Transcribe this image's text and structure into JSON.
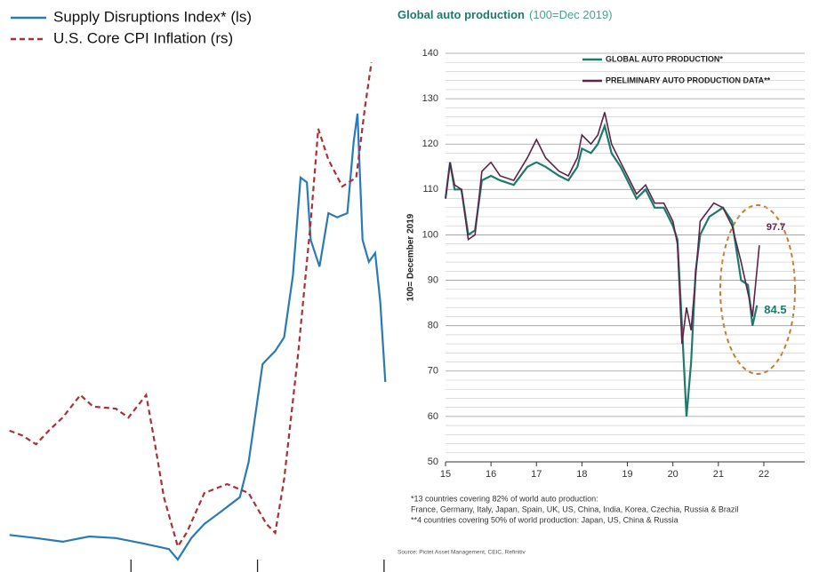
{
  "chart_data": [
    {
      "type": "line",
      "xlim": [
        0,
        3.05
      ],
      "xticks": [
        1,
        2,
        3
      ],
      "ylim": [
        0,
        100
      ],
      "y2lim": [
        0,
        100
      ],
      "series": [
        {
          "name": "Supply Disruptions Index* (ls)",
          "color": "#2a7ab8",
          "line_style": "solid",
          "x": [
            0.04,
            0.25,
            0.46,
            0.67,
            0.88,
            1.09,
            1.3,
            1.37,
            1.48,
            1.58,
            1.72,
            1.86,
            1.93,
            2.04,
            2.14,
            2.21,
            2.28,
            2.34,
            2.39,
            2.42,
            2.49,
            2.56,
            2.63,
            2.71,
            2.76,
            2.79,
            2.83,
            2.88,
            2.93,
            2.97,
            3.01
          ],
          "values": [
            4.7,
            4.1,
            3.4,
            4.4,
            4.1,
            3.1,
            2.0,
            0,
            4.2,
            6.8,
            9.3,
            11.9,
            18.6,
            37.3,
            39.8,
            42.4,
            54.2,
            72.9,
            72.0,
            61.0,
            55.9,
            66.1,
            65.3,
            66.1,
            79.7,
            85.1,
            61.0,
            56.8,
            58.5,
            49.2,
            33.9
          ]
        },
        {
          "name": "U.S. Core CPI Inflation (rs)",
          "color": "#a83236",
          "line_style": "dashed",
          "axis": "y2",
          "x": [
            0.04,
            0.14,
            0.25,
            0.35,
            0.46,
            0.6,
            0.7,
            0.88,
            0.98,
            1.12,
            1.19,
            1.26,
            1.37,
            1.44,
            1.58,
            1.76,
            1.93,
            2.07,
            2.14,
            2.21,
            2.32,
            2.42,
            2.48,
            2.56,
            2.67,
            2.78,
            2.85,
            2.9
          ],
          "values": [
            24.6,
            23.7,
            22.0,
            24.6,
            27.1,
            31.4,
            29.2,
            28.8,
            27.1,
            31.4,
            22.0,
            11.9,
            2.5,
            5.1,
            12.7,
            14.4,
            12.7,
            6.8,
            5.1,
            15.3,
            39.0,
            64.4,
            82.2,
            76.3,
            71.2,
            72.9,
            86.4,
            94.9
          ]
        }
      ]
    },
    {
      "type": "line",
      "title": "Global auto production",
      "subtitle": "(100=Dec 2019)",
      "y_label": "100= December 2019",
      "xlim": [
        15,
        22.9
      ],
      "xticks": [
        15,
        16,
        17,
        18,
        19,
        20,
        21,
        22
      ],
      "ylim": [
        50,
        140
      ],
      "yticks": [
        50,
        60,
        70,
        80,
        90,
        100,
        110,
        120,
        130,
        140
      ],
      "grid": true,
      "series": [
        {
          "name": "GLOBAL AUTO PRODUCTION*",
          "color": "#1e7b6b",
          "x": [
            15.0,
            15.1,
            15.2,
            15.35,
            15.5,
            15.65,
            15.8,
            16.0,
            16.2,
            16.5,
            16.8,
            17.0,
            17.2,
            17.5,
            17.7,
            17.9,
            18.0,
            18.2,
            18.35,
            18.5,
            18.65,
            18.85,
            19.0,
            19.2,
            19.4,
            19.6,
            19.8,
            20.0,
            20.1,
            20.2,
            20.3,
            20.4,
            20.5,
            20.6,
            20.8,
            20.95,
            21.1,
            21.3,
            21.5,
            21.65,
            21.75,
            21.85
          ],
          "values": [
            108,
            116,
            110,
            110,
            100,
            101,
            112,
            113,
            112,
            111,
            115,
            116,
            115,
            113,
            112,
            115,
            119,
            118,
            120,
            124,
            118,
            115,
            112,
            108,
            110,
            106,
            106,
            102,
            99,
            80,
            60,
            72,
            92,
            100,
            104,
            105,
            106,
            103,
            90,
            89,
            80,
            84.5
          ]
        },
        {
          "name": "PRELIMINARY AUTO PRODUCTION DATA**",
          "color": "#5b2448",
          "x": [
            15.0,
            15.1,
            15.2,
            15.35,
            15.5,
            15.65,
            15.8,
            16.0,
            16.2,
            16.5,
            16.8,
            17.0,
            17.2,
            17.5,
            17.7,
            17.9,
            18.0,
            18.2,
            18.35,
            18.5,
            18.65,
            18.85,
            19.0,
            19.2,
            19.4,
            19.6,
            19.8,
            20.0,
            20.1,
            20.2,
            20.3,
            20.4,
            20.6,
            20.9,
            21.1,
            21.3,
            21.5,
            21.7,
            21.75,
            21.9
          ],
          "values": [
            108,
            116,
            111,
            110,
            99,
            100,
            114,
            116,
            113,
            112,
            117,
            121,
            117,
            114,
            113,
            117,
            122,
            120,
            122,
            127,
            120,
            116,
            113,
            109,
            111,
            107,
            107,
            103,
            98,
            76,
            84,
            79,
            103,
            107,
            106,
            102,
            94,
            85,
            82,
            97.7
          ]
        }
      ],
      "annotations": [
        {
          "text": "97.7",
          "color": "#5b2448"
        },
        {
          "text": "84.5",
          "color": "#1e7b6b"
        }
      ],
      "footnotes": [
        "*13 countries covering 82% of world auto production:",
        "France, Germany, Italy, Japan, Spain, UK, US, China, India, Korea, Czechia, Russia & Brazil",
        "**4 countries covering 50% of world production: Japan, US, China & Russia"
      ],
      "source": "Source: Pictet Asset Management, CEIC, Refinitiv"
    }
  ]
}
